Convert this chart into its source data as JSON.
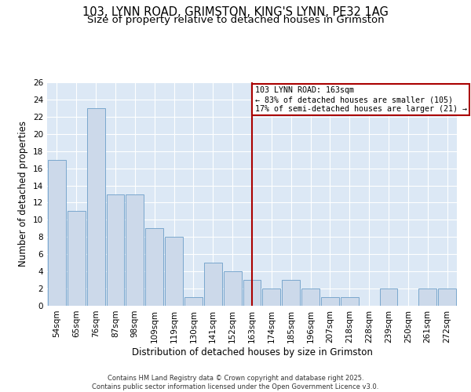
{
  "title_line1": "103, LYNN ROAD, GRIMSTON, KING'S LYNN, PE32 1AG",
  "title_line2": "Size of property relative to detached houses in Grimston",
  "xlabel": "Distribution of detached houses by size in Grimston",
  "ylabel": "Number of detached properties",
  "categories": [
    "54sqm",
    "65sqm",
    "76sqm",
    "87sqm",
    "98sqm",
    "109sqm",
    "119sqm",
    "130sqm",
    "141sqm",
    "152sqm",
    "163sqm",
    "174sqm",
    "185sqm",
    "196sqm",
    "207sqm",
    "218sqm",
    "228sqm",
    "239sqm",
    "250sqm",
    "261sqm",
    "272sqm"
  ],
  "values": [
    17,
    11,
    23,
    13,
    13,
    9,
    8,
    1,
    5,
    4,
    3,
    2,
    3,
    2,
    1,
    1,
    0,
    2,
    0,
    2,
    2
  ],
  "bar_color": "#ccd9ea",
  "bar_edge_color": "#6b9ec8",
  "highlight_index": 10,
  "vline_color": "#aa0000",
  "annotation_text": "103 LYNN ROAD: 163sqm\n← 83% of detached houses are smaller (105)\n17% of semi-detached houses are larger (21) →",
  "annotation_box_color": "#aa0000",
  "ylim": [
    0,
    26
  ],
  "yticks": [
    0,
    2,
    4,
    6,
    8,
    10,
    12,
    14,
    16,
    18,
    20,
    22,
    24,
    26
  ],
  "background_color": "#dce8f5",
  "footer_text": "Contains HM Land Registry data © Crown copyright and database right 2025.\nContains public sector information licensed under the Open Government Licence v3.0.",
  "title_fontsize": 10.5,
  "subtitle_fontsize": 9.5,
  "tick_fontsize": 7.5,
  "ylabel_fontsize": 8.5,
  "xlabel_fontsize": 8.5,
  "footer_fontsize": 6.0
}
